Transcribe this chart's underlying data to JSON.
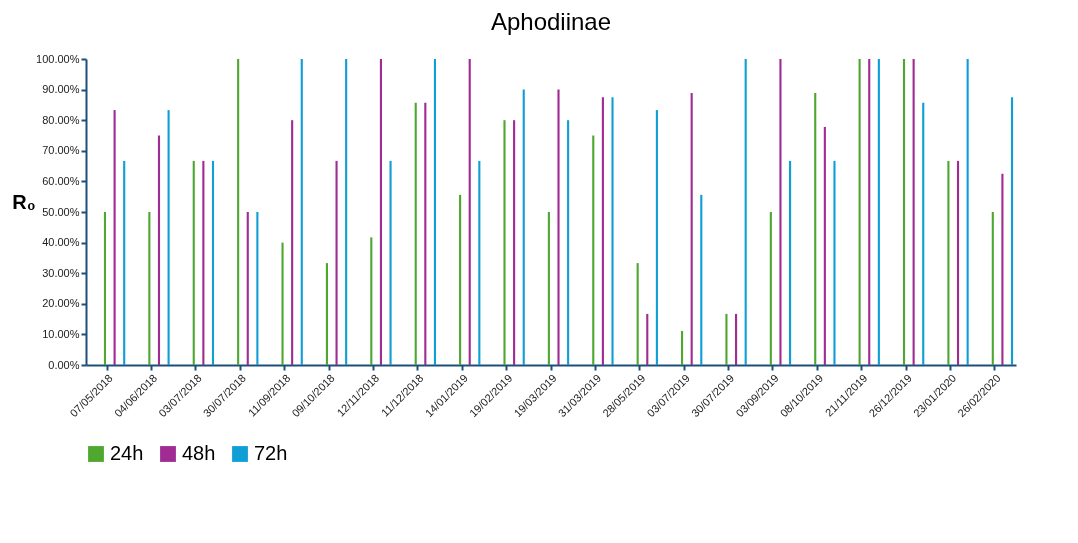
{
  "chart_data": {
    "type": "bar",
    "title": "Aphodiinae",
    "ylabel": "R₀",
    "categories": [
      "07/05/2018",
      "04/06/2018",
      "03/07/2018",
      "30/07/2018",
      "11/09/2018",
      "09/10/2018",
      "12/11/2018",
      "11/12/2018",
      "14/01/2019",
      "19/02/2019",
      "19/03/2019",
      "31/03/2019",
      "28/05/2019",
      "03/07/2019",
      "30/07/2019",
      "03/09/2019",
      "08/10/2019",
      "21/11/2019",
      "26/12/2019",
      "23/01/2020",
      "26/02/2020"
    ],
    "series": [
      {
        "name": "24h",
        "color": "#4ea72e",
        "values": [
          50,
          50,
          66.7,
          100,
          40,
          33.3,
          41.7,
          85.7,
          55.6,
          80,
          50,
          75,
          33.3,
          11.1,
          16.7,
          50,
          88.9,
          100,
          100,
          66.7,
          50
        ]
      },
      {
        "name": "48h",
        "color": "#a02b93",
        "values": [
          83.3,
          75,
          66.7,
          50,
          80,
          66.7,
          100,
          85.7,
          100,
          80,
          90,
          87.5,
          16.7,
          88.9,
          16.7,
          100,
          77.8,
          100,
          100,
          66.7,
          62.5
        ]
      },
      {
        "name": "72h",
        "color": "#0f9ed5",
        "values": [
          66.7,
          83.3,
          66.7,
          50,
          100,
          100,
          66.7,
          100,
          66.7,
          90,
          80,
          87.5,
          83.3,
          55.6,
          100,
          66.7,
          66.7,
          100,
          85.7,
          100,
          87.5
        ]
      }
    ],
    "ylim": [
      0,
      100
    ],
    "yticks": [
      {
        "value": 0,
        "label": "0.00%"
      },
      {
        "value": 10,
        "label": "10.00%"
      },
      {
        "value": 20,
        "label": "20.00%"
      },
      {
        "value": 30,
        "label": "30.00%"
      },
      {
        "value": 40,
        "label": "40.00%"
      },
      {
        "value": 50,
        "label": "50.00%"
      },
      {
        "value": 60,
        "label": "60.00%"
      },
      {
        "value": 70,
        "label": "70.00%"
      },
      {
        "value": 80,
        "label": "80.00%"
      },
      {
        "value": 90,
        "label": "90.00%"
      },
      {
        "value": 100,
        "label": "100.00%"
      }
    ],
    "grid": false,
    "legend": "bottom"
  }
}
